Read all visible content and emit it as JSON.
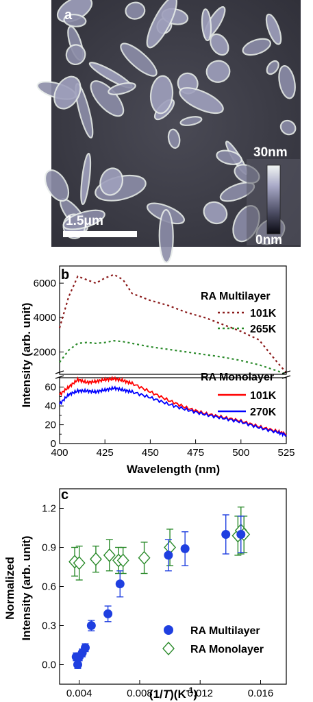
{
  "panel_a": {
    "label": "a",
    "scale_bar_label": "1.5μm",
    "colorbar_max": "30nm",
    "colorbar_min": "0nm"
  },
  "panel_b": {
    "label": "b",
    "ylabel": "Intensity (arb. unit)",
    "xlabel": "Wavelength (nm)",
    "legend": {
      "multilayer_title": "RA Multilayer",
      "monolayer_title": "RA Monolayer",
      "ml_101": "101K",
      "ml_265": "265K",
      "mono_101": "101K",
      "mono_270": "270K"
    },
    "xticks": [
      "400",
      "425",
      "450",
      "475",
      "500",
      "525"
    ],
    "yticks_top": [
      "2000",
      "4000",
      "6000"
    ],
    "yticks_bottom": [
      "0",
      "10",
      "20",
      "30",
      "40",
      "50",
      "60"
    ],
    "colors": {
      "ml_101": "#8b1a1a",
      "ml_265": "#2a8a2a",
      "mono_101": "#ff0000",
      "mono_270": "#0000ff"
    }
  },
  "panel_c": {
    "label": "c",
    "ylabel_line1": "Normalized",
    "ylabel_line2": "Intensity (arb. unit)",
    "xlabel_prefix": "(1/",
    "xlabel_var": "T",
    "xlabel_suffix": ")(K",
    "xlabel_exp": "-1",
    "xlabel_close": ")",
    "legend_multilayer": "RA Multilayer",
    "legend_monolayer": "RA Monolayer",
    "xticks": [
      "0.004",
      "0.008",
      "0.012",
      "0.016"
    ],
    "yticks": [
      "0.0",
      "0.3",
      "0.6",
      "0.9",
      "1.2"
    ],
    "colors": {
      "multilayer": "#1f3fe0",
      "monolayer": "#2a8a2a"
    }
  },
  "chart_data": [
    {
      "type": "line",
      "title": "",
      "xlabel": "Wavelength (nm)",
      "ylabel": "Intensity (arb. unit)",
      "xlim": [
        400,
        525
      ],
      "ylim_bottom": [
        0,
        70
      ],
      "ylim_top": [
        700,
        7000
      ],
      "axis_break": true,
      "grid": false,
      "legend_position": "right",
      "series": [
        {
          "name": "RA Multilayer 101K",
          "x": [
            400,
            405,
            410,
            415,
            420,
            425,
            430,
            435,
            440,
            450,
            460,
            470,
            480,
            490,
            500,
            510,
            520,
            525
          ],
          "y": [
            3400,
            5200,
            6400,
            6200,
            6000,
            6300,
            6500,
            6200,
            5400,
            5000,
            4700,
            4300,
            4000,
            3600,
            3200,
            2700,
            1400,
            800
          ]
        },
        {
          "name": "RA Multilayer 265K",
          "x": [
            400,
            405,
            410,
            415,
            420,
            425,
            430,
            435,
            440,
            450,
            460,
            470,
            480,
            490,
            500,
            510,
            520,
            525
          ],
          "y": [
            1400,
            2100,
            2500,
            2550,
            2500,
            2550,
            2650,
            2600,
            2500,
            2300,
            2150,
            2000,
            1850,
            1700,
            1500,
            1250,
            900,
            700
          ]
        },
        {
          "name": "RA Monolayer 101K",
          "x": [
            400,
            405,
            410,
            415,
            420,
            425,
            430,
            435,
            440,
            450,
            460,
            470,
            480,
            490,
            500,
            510,
            520,
            525
          ],
          "y": [
            52,
            60,
            68,
            65,
            66,
            68,
            69,
            67,
            64,
            55,
            46,
            38,
            32,
            28,
            24,
            18,
            13,
            10
          ]
        },
        {
          "name": "RA Monolayer 270K",
          "x": [
            400,
            405,
            410,
            415,
            420,
            425,
            430,
            435,
            440,
            450,
            460,
            470,
            480,
            490,
            500,
            510,
            520,
            525
          ],
          "y": [
            42,
            52,
            56,
            56,
            55,
            57,
            59,
            57,
            55,
            49,
            42,
            36,
            31,
            27,
            23,
            17,
            12,
            9
          ]
        }
      ]
    },
    {
      "type": "scatter",
      "title": "",
      "xlabel": "(1/T)(K-1)",
      "ylabel": "Normalized Intensity (arb. unit)",
      "xlim": [
        0.0027,
        0.0177
      ],
      "ylim": [
        -0.15,
        1.35
      ],
      "grid": false,
      "legend_position": "bottom-right",
      "series": [
        {
          "name": "RA Multilayer",
          "marker": "filled-circle",
          "x": [
            0.0038,
            0.0039,
            0.004,
            0.0042,
            0.0044,
            0.0048,
            0.0059,
            0.0067,
            0.0099,
            0.011,
            0.0137,
            0.0147
          ],
          "y": [
            0.06,
            0.0,
            0.06,
            0.09,
            0.13,
            0.3,
            0.39,
            0.62,
            0.84,
            0.89,
            1.0,
            1.0
          ],
          "err": [
            0.03,
            0.03,
            0.03,
            0.03,
            0.03,
            0.04,
            0.06,
            0.1,
            0.12,
            0.13,
            0.15,
            0.14
          ]
        },
        {
          "name": "RA Monolayer",
          "marker": "open-diamond",
          "x": [
            0.0037,
            0.004,
            0.0051,
            0.006,
            0.0066,
            0.0069,
            0.0083,
            0.01,
            0.0145,
            0.0147,
            0.0149
          ],
          "y": [
            0.79,
            0.78,
            0.81,
            0.84,
            0.8,
            0.8,
            0.82,
            0.9,
            0.99,
            1.03,
            1.0
          ],
          "err": [
            0.11,
            0.13,
            0.1,
            0.12,
            0.1,
            0.1,
            0.12,
            0.14,
            0.15,
            0.18,
            0.14
          ]
        }
      ]
    }
  ]
}
